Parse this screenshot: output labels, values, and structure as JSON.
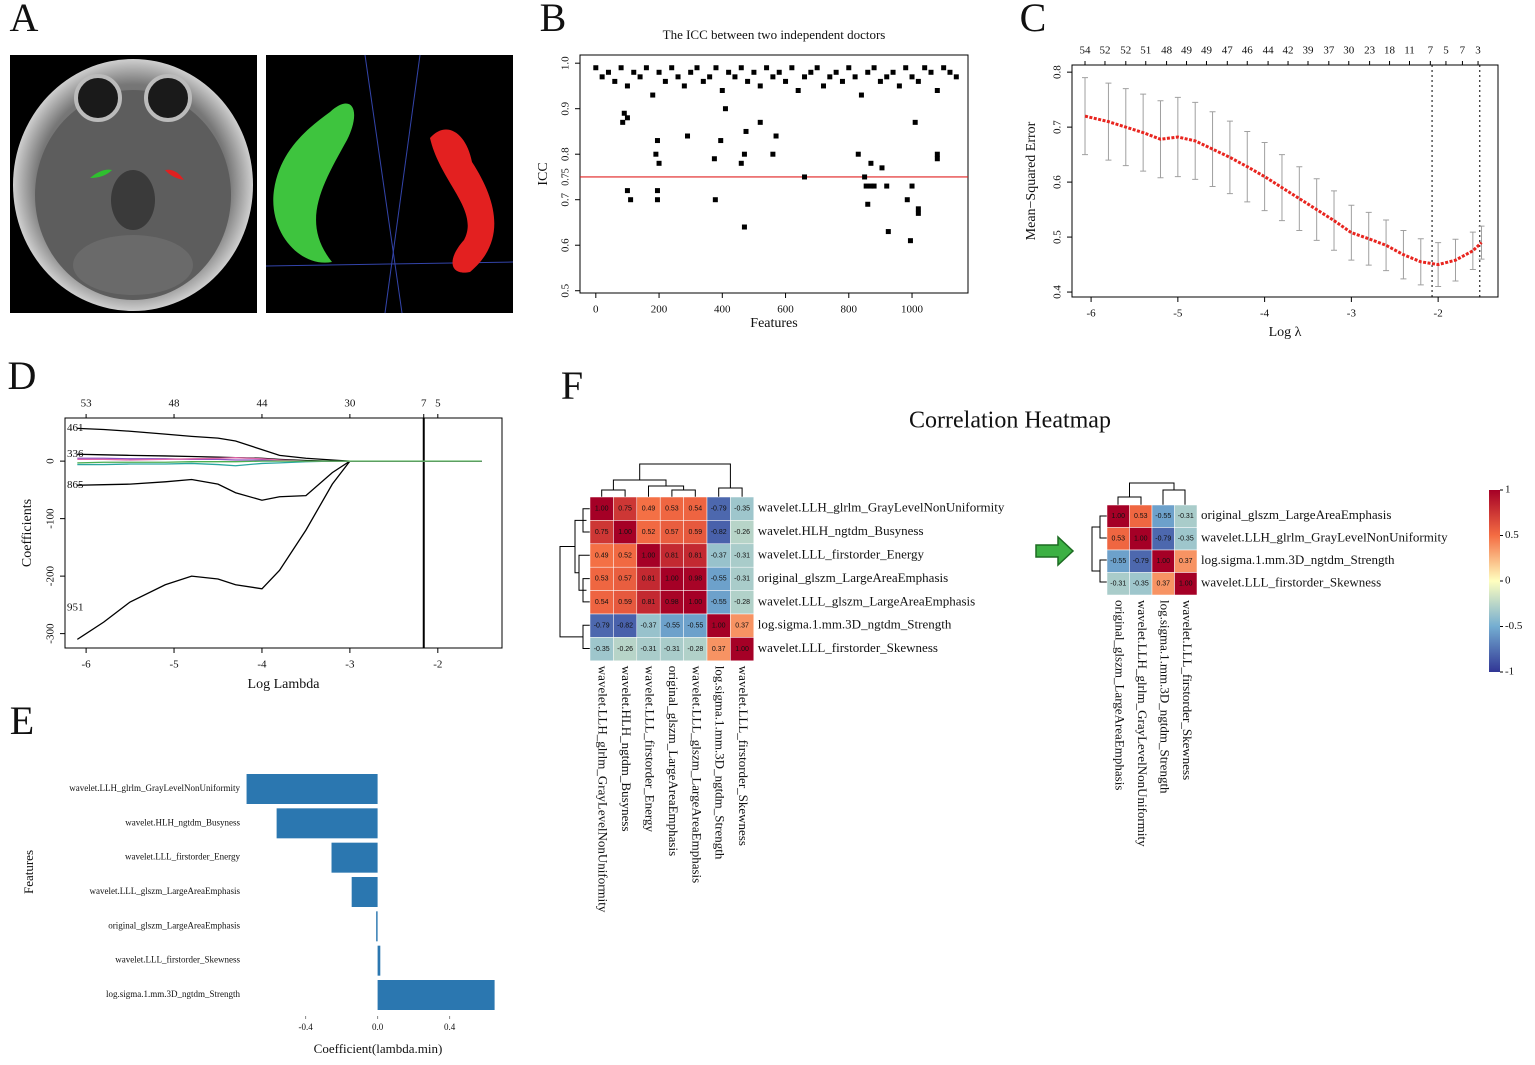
{
  "panels": [
    "A",
    "B",
    "C",
    "D",
    "E",
    "F"
  ],
  "chart_data": [
    {
      "type": "scatter",
      "title": "The ICC between two independent doctors",
      "xlabel": "Features",
      "ylabel": "ICC",
      "xlim": [
        -50,
        1177
      ],
      "ylim": [
        0.495,
        1.018
      ],
      "xticks": [
        0,
        200,
        400,
        600,
        800,
        1000
      ],
      "yticks": [
        0.5,
        0.6,
        0.7,
        0.8,
        0.9,
        {
          "value": 1,
          "label": "1.0"
        }
      ],
      "hline": {
        "value": 0.75,
        "color": "#e02020"
      },
      "color": "#000000",
      "x": [
        0,
        20,
        40,
        60,
        80,
        100,
        120,
        140,
        160,
        180,
        200,
        220,
        240,
        260,
        280,
        300,
        320,
        340,
        360,
        380,
        400,
        420,
        440,
        460,
        480,
        500,
        520,
        540,
        560,
        580,
        600,
        620,
        640,
        660,
        680,
        700,
        720,
        740,
        760,
        780,
        800,
        820,
        840,
        860,
        880,
        900,
        920,
        940,
        960,
        980,
        1000,
        1020,
        1040,
        1060,
        1080,
        1100,
        1120,
        1140,
        100,
        110,
        195,
        195,
        190,
        195,
        200,
        375,
        378,
        470,
        460,
        470,
        475,
        560,
        570,
        660,
        850,
        855,
        860,
        870,
        880,
        920,
        925,
        985,
        995,
        1000,
        1020,
        1020,
        1080,
        1080,
        830,
        870,
        905,
        1010,
        290,
        85,
        90,
        100,
        395,
        410,
        520
      ],
      "values": [
        0.99,
        0.97,
        0.98,
        0.96,
        0.99,
        0.95,
        0.98,
        0.97,
        0.99,
        0.93,
        0.98,
        0.96,
        0.99,
        0.97,
        0.95,
        0.98,
        0.99,
        0.96,
        0.97,
        0.99,
        0.94,
        0.98,
        0.97,
        0.99,
        0.96,
        0.98,
        0.95,
        0.99,
        0.97,
        0.98,
        0.96,
        0.99,
        0.94,
        0.97,
        0.98,
        0.99,
        0.95,
        0.97,
        0.98,
        0.96,
        0.99,
        0.97,
        0.93,
        0.98,
        0.99,
        0.96,
        0.97,
        0.98,
        0.95,
        0.99,
        0.97,
        0.96,
        0.99,
        0.98,
        0.94,
        0.99,
        0.98,
        0.97,
        0.72,
        0.7,
        0.72,
        0.7,
        0.8,
        0.83,
        0.78,
        0.79,
        0.7,
        0.64,
        0.78,
        0.8,
        0.85,
        0.8,
        0.84,
        0.75,
        0.75,
        0.73,
        0.69,
        0.73,
        0.73,
        0.73,
        0.63,
        0.7,
        0.61,
        0.73,
        0.68,
        0.67,
        0.79,
        0.8,
        0.8,
        0.78,
        0.77,
        0.87,
        0.84,
        0.87,
        0.89,
        0.88,
        0.83,
        0.9,
        0.87
      ]
    },
    {
      "type": "errorline",
      "xlabel": "Log λ",
      "ylabel": "Mean−Squared Error",
      "xlim": [
        -6.22,
        -1.31
      ],
      "ylim": [
        0.391,
        0.813
      ],
      "xticks": [
        -6,
        -5,
        -4,
        -3,
        -2
      ],
      "yticks": [
        0.4,
        0.5,
        0.6,
        0.7,
        0.8
      ],
      "top_ticks": [
        {
          "value": -6.07,
          "label": 54
        },
        {
          "value": -5.84,
          "label": 52
        },
        {
          "value": -5.6,
          "label": 52
        },
        {
          "value": -5.37,
          "label": 51
        },
        {
          "value": -5.13,
          "label": 48
        },
        {
          "value": -4.9,
          "label": 49
        },
        {
          "value": -4.67,
          "label": 49
        },
        {
          "value": -4.43,
          "label": 47
        },
        {
          "value": -4.2,
          "label": 46
        },
        {
          "value": -3.96,
          "label": 44
        },
        {
          "value": -3.73,
          "label": 42
        },
        {
          "value": -3.5,
          "label": 39
        },
        {
          "value": -3.26,
          "label": 37
        },
        {
          "value": -3.03,
          "label": 30
        },
        {
          "value": -2.79,
          "label": 23
        },
        {
          "value": -2.56,
          "label": 18
        },
        {
          "value": -2.33,
          "label": 11
        },
        {
          "value": -2.09,
          "label": 7
        },
        {
          "value": -1.91,
          "label": 5
        },
        {
          "value": -1.72,
          "label": 7
        },
        {
          "value": -1.54,
          "label": 3
        }
      ],
      "vlines": [
        -2.07,
        -1.52
      ],
      "color": "#e8251f",
      "error_color": "#a0a0a0",
      "x": [
        -6.07,
        -5.8,
        -5.6,
        -5.4,
        -5.2,
        -5.0,
        -4.8,
        -4.6,
        -4.4,
        -4.2,
        -4.0,
        -3.8,
        -3.6,
        -3.4,
        -3.2,
        -3.0,
        -2.8,
        -2.6,
        -2.4,
        -2.2,
        -2.0,
        -1.8,
        -1.6,
        -1.5
      ],
      "values": [
        0.72,
        0.71,
        0.7,
        0.69,
        0.678,
        0.682,
        0.675,
        0.66,
        0.645,
        0.628,
        0.61,
        0.59,
        0.57,
        0.55,
        0.53,
        0.508,
        0.497,
        0.485,
        0.468,
        0.455,
        0.45,
        0.458,
        0.475,
        0.49
      ],
      "errors": [
        0.07,
        0.07,
        0.07,
        0.07,
        0.07,
        0.072,
        0.07,
        0.068,
        0.066,
        0.064,
        0.062,
        0.06,
        0.058,
        0.056,
        0.054,
        0.05,
        0.048,
        0.046,
        0.044,
        0.042,
        0.04,
        0.038,
        0.034,
        0.03
      ]
    },
    {
      "type": "lines",
      "xlabel": "Log Lambda",
      "ylabel": "Coefficients",
      "xlim": [
        -6.24,
        -1.27
      ],
      "ylim": [
        -325,
        75
      ],
      "xticks": [
        -6,
        -5,
        -4,
        -3,
        -2
      ],
      "yticks": [
        -300,
        -200,
        -100,
        0
      ],
      "top_ticks": [
        {
          "value": -6,
          "label": 53
        },
        {
          "value": -5,
          "label": 48
        },
        {
          "value": -4,
          "label": 44
        },
        {
          "value": -3,
          "label": 30
        },
        {
          "value": -2.16,
          "label": 7
        },
        {
          "value": -2.0,
          "label": 5
        }
      ],
      "vline": -2.16,
      "x": [
        -6.1,
        -5.8,
        -5.5,
        -5.1,
        -4.8,
        -4.5,
        -4.3,
        -4.0,
        -3.8,
        -3.5,
        -3.2,
        -3.0,
        -2.5,
        -2.0,
        -1.5
      ],
      "series": [
        {
          "name": "461",
          "color": "#000000",
          "values": [
            57,
            55,
            52,
            47,
            43,
            40,
            35,
            20,
            10,
            5,
            2,
            0,
            0,
            0,
            0
          ]
        },
        {
          "name": "336",
          "color": "#000000",
          "values": [
            12,
            11,
            10,
            9,
            8,
            7,
            6,
            5,
            3,
            1,
            0,
            0,
            0,
            0,
            0
          ]
        },
        {
          "name": "865",
          "color": "#000000",
          "values": [
            -42,
            -41,
            -40,
            -36,
            -32,
            -40,
            -55,
            -68,
            -62,
            -60,
            -20,
            0,
            0,
            0,
            0
          ]
        },
        {
          "name": "951",
          "color": "#000000",
          "values": [
            -310,
            -280,
            -245,
            -215,
            -200,
            -205,
            -215,
            -222,
            -190,
            -120,
            -40,
            0,
            0,
            0,
            0
          ]
        },
        {
          "color": "#8a4fc0",
          "values": [
            5,
            5,
            4,
            4,
            3,
            3,
            2,
            2,
            1,
            0,
            0,
            0,
            0,
            0,
            0
          ]
        },
        {
          "color": "#2aa6a0",
          "values": [
            -6,
            -6,
            -5,
            -5,
            -4,
            -6,
            -8,
            -4,
            -3,
            -1,
            0,
            0,
            0,
            0,
            0
          ]
        },
        {
          "color": "#e066a8",
          "values": [
            3,
            3,
            2,
            3,
            4,
            5,
            6,
            4,
            2,
            0,
            0,
            0,
            0,
            0,
            0
          ]
        },
        {
          "color": "#4caf50",
          "values": [
            -3,
            -2,
            -2,
            -2,
            -1,
            -1,
            -1,
            0,
            0,
            0,
            0,
            0,
            0,
            0,
            0
          ]
        }
      ]
    },
    {
      "type": "barh",
      "xlabel": "Coefficient(lambda.min)",
      "ylabel": "Features",
      "color": "#2b77b0",
      "xlim": [
        -0.77,
        0.68
      ],
      "xticks": [
        -0.4,
        {
          "value": 0,
          "label": "0.0"
        },
        0.4
      ],
      "categories": [
        "wavelet.LLH_glrlm_GrayLevelNonUniformity",
        "wavelet.HLH_ngtdm_Busyness",
        "wavelet.LLL_firstorder_Energy",
        "wavelet.LLL_glszm_LargeAreaEmphasis",
        "original_glszm_LargeAreaEmphasis",
        "wavelet.LLL_firstorder_Skewness",
        "log.sigma.1.mm.3D_ngtdm_Strength"
      ],
      "values": [
        -0.728,
        -0.561,
        -0.256,
        -0.144,
        -0.008,
        0.015,
        0.65
      ]
    },
    {
      "type": "heatmap",
      "title": "Correlation Heatmap",
      "colors": [
        "#313695",
        "#74add1",
        "#ffffbf",
        "#f46d43",
        "#a50026"
      ],
      "clim": [
        -1,
        1
      ],
      "colorbar_ticks": [
        1,
        0.5,
        0,
        -0.5,
        -1
      ],
      "matrices": [
        {
          "labels": [
            "wavelet.LLH_glrlm_GrayLevelNonUniformity",
            "wavelet.HLH_ngtdm_Busyness",
            "wavelet.LLL_firstorder_Energy",
            "original_glszm_LargeAreaEmphasis",
            "wavelet.LLL_glszm_LargeAreaEmphasis",
            "log.sigma.1.mm.3D_ngtdm_Strength",
            "wavelet.LLL_firstorder_Skewness"
          ],
          "values": [
            [
              1,
              0.75,
              0.49,
              0.53,
              0.54,
              -0.79,
              -0.35
            ],
            [
              0.75,
              1,
              0.52,
              0.57,
              0.59,
              -0.82,
              -0.26
            ],
            [
              0.49,
              0.52,
              1,
              0.81,
              0.81,
              -0.37,
              -0.31
            ],
            [
              0.53,
              0.57,
              0.81,
              1,
              0.98,
              -0.55,
              -0.31
            ],
            [
              0.54,
              0.59,
              0.81,
              0.98,
              1,
              -0.55,
              -0.28
            ],
            [
              -0.79,
              -0.82,
              -0.37,
              -0.55,
              -0.55,
              1,
              0.37
            ],
            [
              -0.35,
              -0.26,
              -0.31,
              -0.31,
              -0.28,
              0.37,
              1
            ]
          ],
          "value_labels": [
            [
              "1.00",
              "0.75",
              "0.49",
              "0.53",
              "0.54",
              "-0.79",
              "-0.35"
            ],
            [
              "0.75",
              "1.00",
              "0.52",
              "0.57",
              "0.59",
              "-0.82",
              "-0.26"
            ],
            [
              "0.49",
              "0.52",
              "1.00",
              "0.81",
              "0.81",
              "-0.37",
              "-0.31"
            ],
            [
              "0.53",
              "0.57",
              "0.81",
              "1.00",
              "0.98",
              "-0.55",
              "-0.31"
            ],
            [
              "0.54",
              "0.59",
              "0.81",
              "0.98",
              "1.00",
              "-0.55",
              "-0.28"
            ],
            [
              "-0.79",
              "-0.82",
              "-0.37",
              "-0.55",
              "-0.55",
              "1.00",
              "0.37"
            ],
            [
              "-0.35",
              "-0.26",
              "-0.31",
              "-0.31",
              "-0.28",
              "0.37",
              "1.00"
            ]
          ]
        },
        {
          "labels": [
            "original_glszm_LargeAreaEmphasis",
            "wavelet.LLH_glrlm_GrayLevelNonUniformity",
            "log.sigma.1.mm.3D_ngtdm_Strength",
            "wavelet.LLL_firstorder_Skewness"
          ],
          "values": [
            [
              1,
              0.53,
              -0.55,
              -0.31
            ],
            [
              0.53,
              1,
              -0.79,
              -0.35
            ],
            [
              -0.55,
              -0.79,
              1,
              0.37
            ],
            [
              -0.31,
              -0.35,
              0.37,
              1
            ]
          ],
          "value_labels": [
            [
              "1.00",
              "0.53",
              "-0.55",
              "-0.31"
            ],
            [
              "0.53",
              "1.00",
              "-0.79",
              "-0.35"
            ],
            [
              "-0.55",
              "-0.79",
              "1.00",
              "0.37"
            ],
            [
              "-0.31",
              "-0.35",
              "0.37",
              "1.00"
            ]
          ]
        }
      ]
    }
  ]
}
